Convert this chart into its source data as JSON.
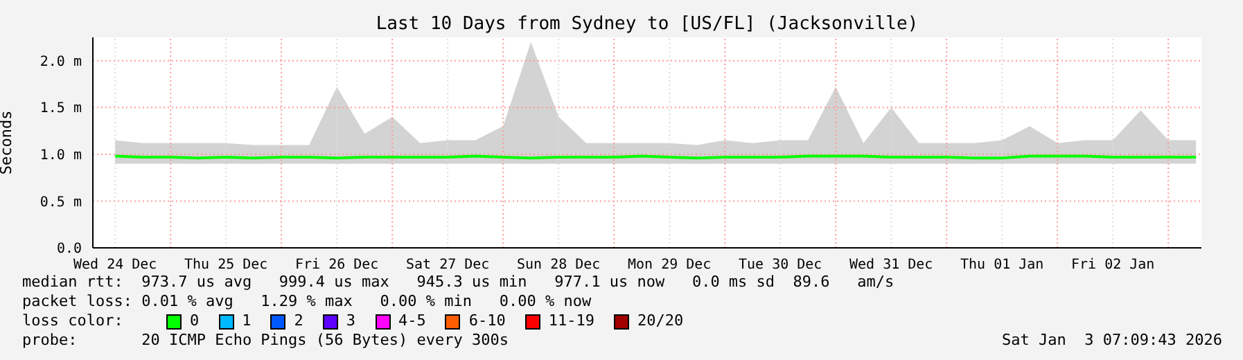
{
  "chart_data": {
    "type": "line",
    "title": "Last 10 Days from Sydney to [US/FL] (Jacksonville)",
    "ylabel": "Seconds",
    "x": [
      "2025-12-24T12:00",
      "2025-12-24T18:00",
      "2025-12-25T00:00",
      "2025-12-25T06:00",
      "2025-12-25T12:00",
      "2025-12-25T18:00",
      "2025-12-26T00:00",
      "2025-12-26T06:00",
      "2025-12-26T12:00",
      "2025-12-26T18:00",
      "2025-12-27T00:00",
      "2025-12-27T06:00",
      "2025-12-27T12:00",
      "2025-12-27T18:00",
      "2025-12-28T00:00",
      "2025-12-28T06:00",
      "2025-12-28T12:00",
      "2025-12-28T18:00",
      "2025-12-29T00:00",
      "2025-12-29T06:00",
      "2025-12-29T12:00",
      "2025-12-29T18:00",
      "2025-12-30T00:00",
      "2025-12-30T06:00",
      "2025-12-30T12:00",
      "2025-12-30T18:00",
      "2025-12-31T00:00",
      "2025-12-31T06:00",
      "2025-12-31T12:00",
      "2025-12-31T18:00",
      "2026-01-01T00:00",
      "2026-01-01T06:00",
      "2026-01-01T12:00",
      "2026-01-01T18:00",
      "2026-01-02T00:00",
      "2026-01-02T06:00",
      "2026-01-02T12:00",
      "2026-01-02T18:00",
      "2026-01-03T00:00",
      "2026-01-03T06:00"
    ],
    "series": [
      {
        "name": "0",
        "color": "#00ff00",
        "values": [
          0.98,
          0.97,
          0.97,
          0.96,
          0.97,
          0.96,
          0.97,
          0.97,
          0.96,
          0.97,
          0.97,
          0.97,
          0.97,
          0.98,
          0.97,
          0.96,
          0.97,
          0.97,
          0.97,
          0.98,
          0.97,
          0.96,
          0.97,
          0.97,
          0.97,
          0.98,
          0.98,
          0.98,
          0.97,
          0.97,
          0.97,
          0.96,
          0.96,
          0.98,
          0.98,
          0.98,
          0.97,
          0.97,
          0.97,
          0.97
        ],
        "lower": [
          0.9,
          0.9,
          0.9,
          0.9,
          0.9,
          0.9,
          0.9,
          0.9,
          0.9,
          0.9,
          0.9,
          0.9,
          0.9,
          0.9,
          0.9,
          0.9,
          0.9,
          0.9,
          0.9,
          0.9,
          0.9,
          0.9,
          0.9,
          0.9,
          0.9,
          0.9,
          0.9,
          0.9,
          0.9,
          0.9,
          0.9,
          0.9,
          0.9,
          0.9,
          0.9,
          0.9,
          0.9,
          0.9,
          0.9,
          0.9
        ],
        "upper": [
          1.15,
          1.12,
          1.12,
          1.12,
          1.12,
          1.1,
          1.1,
          1.1,
          1.72,
          1.22,
          1.4,
          1.12,
          1.15,
          1.15,
          1.3,
          2.2,
          1.4,
          1.12,
          1.12,
          1.12,
          1.12,
          1.1,
          1.15,
          1.12,
          1.15,
          1.15,
          1.72,
          1.12,
          1.5,
          1.12,
          1.12,
          1.12,
          1.15,
          1.3,
          1.12,
          1.15,
          1.15,
          1.47,
          1.15,
          1.15
        ]
      },
      {
        "name": "1",
        "color": "#00b8ff",
        "values": [
          null,
          null,
          null,
          null,
          null,
          null,
          null,
          null,
          null,
          null,
          null,
          null,
          null,
          null,
          null,
          null,
          null,
          null,
          null,
          null,
          null,
          null,
          null,
          null,
          null,
          null,
          null,
          null,
          null,
          null,
          null,
          null,
          null,
          null,
          null,
          null,
          null,
          null,
          null,
          null
        ]
      },
      {
        "name": "2",
        "color": "#0059ff",
        "values": [
          null,
          null,
          null,
          null,
          null,
          null,
          null,
          null,
          null,
          null,
          null,
          null,
          null,
          null,
          null,
          null,
          null,
          null,
          null,
          null,
          null,
          null,
          null,
          null,
          null,
          null,
          null,
          null,
          null,
          null,
          null,
          null,
          null,
          null,
          null,
          null,
          null,
          null,
          null,
          null
        ]
      },
      {
        "name": "3",
        "color": "#5e00ff",
        "values": [
          null,
          null,
          null,
          null,
          null,
          null,
          null,
          null,
          null,
          null,
          null,
          null,
          null,
          null,
          null,
          null,
          null,
          null,
          null,
          null,
          null,
          null,
          null,
          null,
          null,
          null,
          null,
          null,
          null,
          null,
          null,
          null,
          null,
          null,
          null,
          null,
          null,
          null,
          null,
          null
        ]
      },
      {
        "name": "4-5",
        "color": "#ff00ff",
        "values": [
          null,
          null,
          null,
          null,
          null,
          null,
          null,
          null,
          null,
          null,
          null,
          null,
          null,
          null,
          null,
          null,
          null,
          null,
          null,
          null,
          null,
          null,
          null,
          null,
          null,
          null,
          null,
          null,
          null,
          null,
          null,
          null,
          null,
          null,
          null,
          null,
          null,
          null,
          null,
          null
        ]
      },
      {
        "name": "6-10",
        "color": "#ff5e00",
        "values": [
          null,
          null,
          null,
          null,
          null,
          null,
          null,
          null,
          null,
          null,
          null,
          null,
          null,
          null,
          null,
          null,
          null,
          null,
          null,
          null,
          null,
          null,
          null,
          null,
          null,
          null,
          null,
          null,
          null,
          null,
          null,
          null,
          null,
          null,
          null,
          null,
          null,
          null,
          null,
          null
        ]
      },
      {
        "name": "11-19",
        "color": "#ff0000",
        "values": [
          null,
          null,
          null,
          null,
          null,
          null,
          null,
          null,
          null,
          null,
          null,
          null,
          null,
          null,
          null,
          null,
          null,
          null,
          null,
          null,
          null,
          null,
          null,
          null,
          null,
          null,
          null,
          null,
          null,
          null,
          null,
          null,
          null,
          null,
          null,
          null,
          null,
          null,
          null,
          null
        ]
      },
      {
        "name": "20/20",
        "color": "#a10000",
        "values": [
          null,
          null,
          null,
          null,
          null,
          null,
          null,
          null,
          null,
          null,
          null,
          null,
          null,
          null,
          null,
          null,
          null,
          null,
          null,
          null,
          null,
          null,
          null,
          null,
          null,
          null,
          null,
          null,
          null,
          null,
          null,
          null,
          null,
          null,
          null,
          null,
          null,
          null,
          null,
          null
        ]
      }
    ],
    "legend_title": "loss color:",
    "legend": "bottom",
    "xlim": [
      "2025-12-24T07:10",
      "2026-01-03T07:10"
    ],
    "xticks": [
      {
        "value": "2025-12-24T12:00",
        "label": "Wed 24 Dec"
      },
      {
        "value": "2025-12-25T00:00",
        "label": null
      },
      {
        "value": "2025-12-25T12:00",
        "label": "Thu 25 Dec"
      },
      {
        "value": "2025-12-26T00:00",
        "label": null
      },
      {
        "value": "2025-12-26T12:00",
        "label": "Fri 26 Dec"
      },
      {
        "value": "2025-12-27T00:00",
        "label": null
      },
      {
        "value": "2025-12-27T12:00",
        "label": "Sat 27 Dec"
      },
      {
        "value": "2025-12-28T00:00",
        "label": null
      },
      {
        "value": "2025-12-28T12:00",
        "label": "Sun 28 Dec"
      },
      {
        "value": "2025-12-29T00:00",
        "label": null
      },
      {
        "value": "2025-12-29T12:00",
        "label": "Mon 29 Dec"
      },
      {
        "value": "2025-12-30T00:00",
        "label": null
      },
      {
        "value": "2025-12-30T12:00",
        "label": "Tue 30 Dec"
      },
      {
        "value": "2025-12-31T00:00",
        "label": null
      },
      {
        "value": "2025-12-31T12:00",
        "label": "Wed 31 Dec"
      },
      {
        "value": "2026-01-01T00:00",
        "label": null
      },
      {
        "value": "2026-01-01T12:00",
        "label": "Thu 01 Jan"
      },
      {
        "value": "2026-01-02T00:00",
        "label": null
      },
      {
        "value": "2026-01-02T12:00",
        "label": "Fri 02 Jan"
      },
      {
        "value": "2026-01-03T00:00",
        "label": null
      }
    ],
    "ylim": [
      0,
      2.25
    ],
    "yticks": [
      {
        "value": 0,
        "label": "0.0"
      },
      {
        "value": 0.5,
        "label": "0.5 m"
      },
      {
        "value": 1,
        "label": "1.0 m"
      },
      {
        "value": 1.5,
        "label": "1.5 m"
      },
      {
        "value": 2,
        "label": "2.0 m"
      }
    ],
    "grid": true,
    "marker": "none",
    "line_style": "solid",
    "annotations": [
      "median rtt:  973.7 us avg   999.4 us max   945.3 us min   977.1 us now   0.0 ms sd  89.6   am/s",
      "packet loss: 0.01 % avg   1.29 % max   0.00 % min   0.00 % now",
      "probe:       20 ICMP Echo Pings (56 Bytes) every 300s",
      "Sat Jan  3 07:09:43 2026"
    ]
  }
}
